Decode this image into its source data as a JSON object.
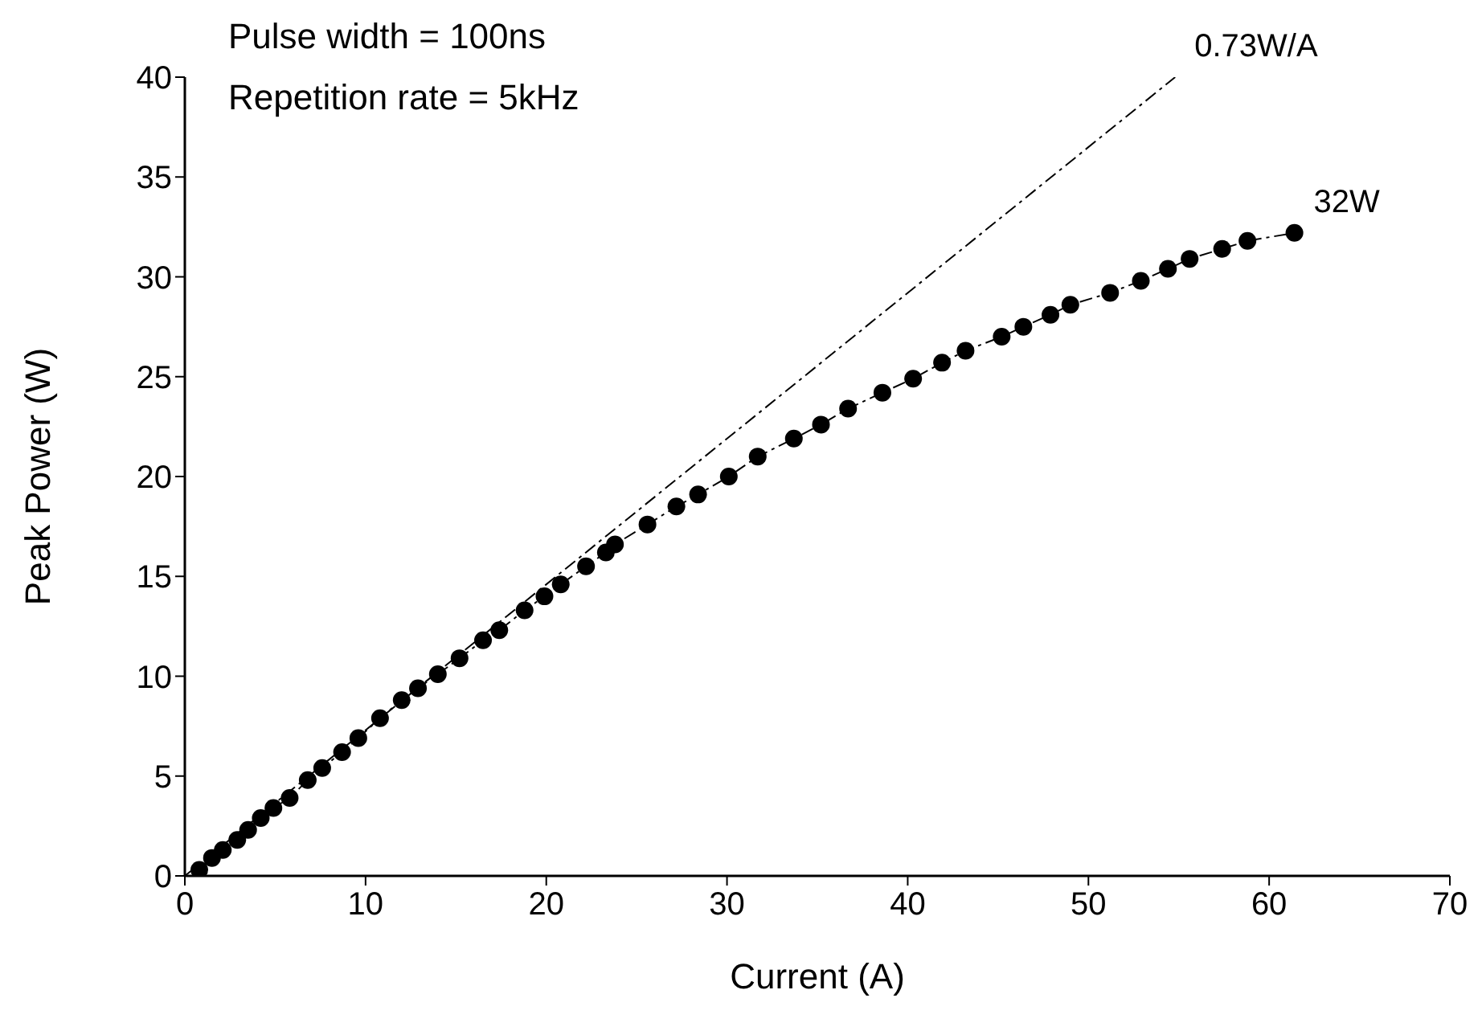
{
  "chart_data": {
    "type": "line",
    "xlabel": "Current (A)",
    "ylabel": "Peak Power (W)",
    "xlim": [
      0,
      70
    ],
    "xticks": [
      0,
      10,
      20,
      30,
      40,
      50,
      60,
      70
    ],
    "ylim": [
      0,
      40
    ],
    "yticks": [
      0,
      5,
      10,
      15,
      20,
      25,
      30,
      35,
      40
    ],
    "grid": false,
    "annotations": [
      "Pulse width = 100ns",
      "Repetition rate = 5kHz",
      {
        "text": "0.73W/A",
        "x": 54.8,
        "y": 40
      },
      {
        "text": "32W",
        "x": 61.4,
        "y": 32.2
      }
    ],
    "series": [
      {
        "color": "#000000",
        "marker": "circle",
        "line_style": "dashed",
        "x": [
          0.8,
          1.5,
          2.1,
          2.9,
          3.5,
          4.2,
          4.9,
          5.8,
          6.8,
          7.6,
          8.7,
          9.6,
          10.8,
          12.0,
          12.9,
          14.0,
          15.2,
          16.5,
          17.4,
          18.8,
          19.9,
          20.8,
          22.2,
          23.3,
          23.8,
          25.6,
          27.2,
          28.4,
          30.1,
          31.7,
          33.7,
          35.2,
          36.7,
          38.6,
          40.3,
          41.9,
          43.2,
          45.2,
          46.4,
          47.9,
          49.0,
          51.2,
          52.9,
          54.4,
          55.6,
          57.4,
          58.8,
          61.4
        ],
        "values": [
          0.3,
          0.9,
          1.3,
          1.8,
          2.3,
          2.9,
          3.4,
          3.9,
          4.8,
          5.4,
          6.2,
          6.9,
          7.9,
          8.8,
          9.4,
          10.1,
          10.9,
          11.8,
          12.3,
          13.3,
          14.0,
          14.6,
          15.5,
          16.2,
          16.6,
          17.6,
          18.5,
          19.1,
          20.0,
          21.0,
          21.9,
          22.6,
          23.4,
          24.2,
          24.9,
          25.7,
          26.3,
          27.0,
          27.5,
          28.1,
          28.6,
          29.2,
          29.8,
          30.4,
          30.9,
          31.4,
          31.8,
          32.2
        ]
      },
      {
        "type": "line",
        "color": "#000000",
        "marker": "none",
        "line_style": "dashed",
        "x": [
          0,
          54.8
        ],
        "values": [
          0,
          40
        ]
      }
    ]
  }
}
